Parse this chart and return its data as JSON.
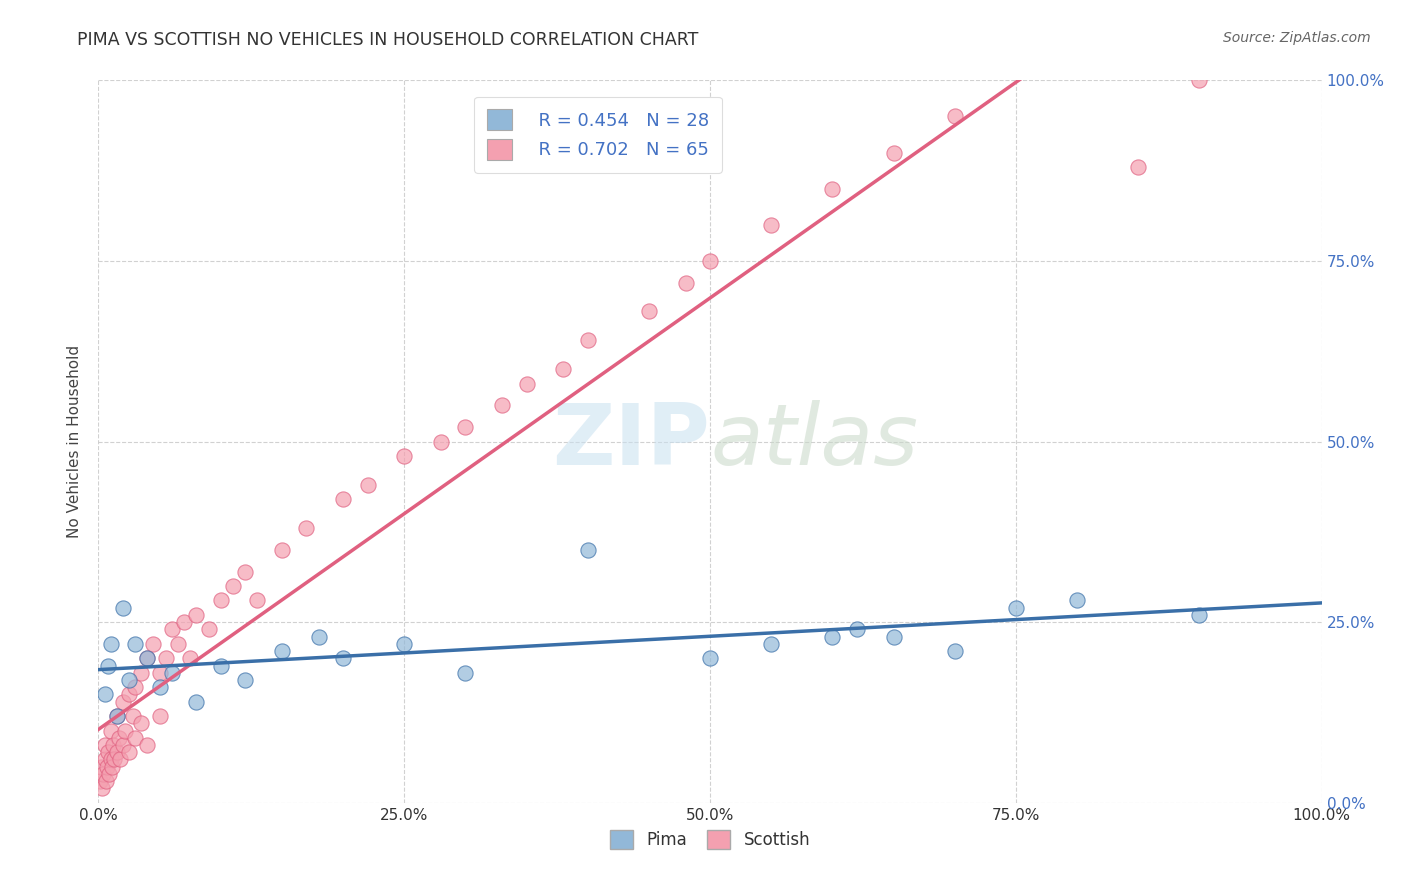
{
  "title": "PIMA VS SCOTTISH NO VEHICLES IN HOUSEHOLD CORRELATION CHART",
  "source": "Source: ZipAtlas.com",
  "ylabel": "No Vehicles in Household",
  "watermark": "ZIPatlas",
  "pima_R": 0.454,
  "pima_N": 28,
  "scottish_R": 0.702,
  "scottish_N": 65,
  "pima_color": "#92b8d8",
  "pima_line_color": "#3a6fa8",
  "scottish_color": "#f4a0b0",
  "scottish_line_color": "#e06080",
  "label_color": "#4472c4",
  "background_color": "#ffffff",
  "grid_color": "#cccccc",
  "pima_x": [
    0.5,
    0.8,
    1.0,
    1.5,
    2.0,
    2.5,
    3.0,
    4.0,
    5.0,
    6.0,
    8.0,
    10.0,
    12.0,
    15.0,
    18.0,
    20.0,
    25.0,
    30.0,
    40.0,
    50.0,
    55.0,
    60.0,
    62.0,
    65.0,
    70.0,
    75.0,
    80.0,
    90.0
  ],
  "pima_y": [
    15.0,
    19.0,
    22.0,
    12.0,
    27.0,
    17.0,
    22.0,
    20.0,
    16.0,
    18.0,
    14.0,
    19.0,
    17.0,
    21.0,
    23.0,
    20.0,
    22.0,
    18.0,
    35.0,
    20.0,
    22.0,
    23.0,
    24.0,
    23.0,
    21.0,
    27.0,
    28.0,
    26.0
  ],
  "scottish_x": [
    0.1,
    0.2,
    0.3,
    0.4,
    0.5,
    0.5,
    0.6,
    0.7,
    0.8,
    0.9,
    1.0,
    1.0,
    1.1,
    1.2,
    1.3,
    1.5,
    1.5,
    1.7,
    1.8,
    2.0,
    2.0,
    2.2,
    2.5,
    2.5,
    2.8,
    3.0,
    3.0,
    3.5,
    3.5,
    4.0,
    4.0,
    4.5,
    5.0,
    5.0,
    5.5,
    6.0,
    6.5,
    7.0,
    7.5,
    8.0,
    9.0,
    10.0,
    11.0,
    12.0,
    13.0,
    15.0,
    17.0,
    20.0,
    22.0,
    25.0,
    28.0,
    30.0,
    33.0,
    35.0,
    38.0,
    40.0,
    45.0,
    48.0,
    50.0,
    55.0,
    60.0,
    65.0,
    70.0,
    85.0,
    90.0
  ],
  "scottish_y": [
    3.0,
    5.0,
    2.0,
    4.0,
    6.0,
    8.0,
    3.0,
    5.0,
    7.0,
    4.0,
    6.0,
    10.0,
    5.0,
    8.0,
    6.0,
    12.0,
    7.0,
    9.0,
    6.0,
    14.0,
    8.0,
    10.0,
    15.0,
    7.0,
    12.0,
    16.0,
    9.0,
    18.0,
    11.0,
    20.0,
    8.0,
    22.0,
    18.0,
    12.0,
    20.0,
    24.0,
    22.0,
    25.0,
    20.0,
    26.0,
    24.0,
    28.0,
    30.0,
    32.0,
    28.0,
    35.0,
    38.0,
    42.0,
    44.0,
    48.0,
    50.0,
    52.0,
    55.0,
    58.0,
    60.0,
    64.0,
    68.0,
    72.0,
    75.0,
    80.0,
    85.0,
    90.0,
    95.0,
    88.0,
    100.0
  ],
  "xlim": [
    0,
    100
  ],
  "ylim": [
    0,
    100
  ],
  "xticks": [
    0,
    25,
    50,
    75,
    100
  ],
  "yticks": [
    0,
    25,
    50,
    75,
    100
  ],
  "xticklabels": [
    "0.0%",
    "25.0%",
    "50.0%",
    "75.0%",
    "100.0%"
  ],
  "yticklabels_right": [
    "0.0%",
    "25.0%",
    "50.0%",
    "75.0%",
    "100.0%"
  ]
}
